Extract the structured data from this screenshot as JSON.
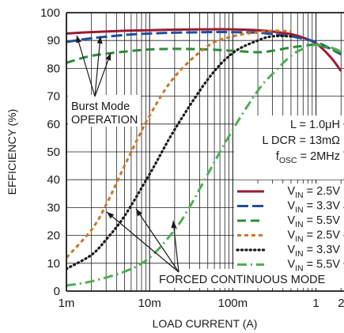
{
  "chart_data": {
    "type": "line",
    "title": "",
    "xlabel": "LOAD CURRENT (A)",
    "ylabel": "EFFICIENCY (%)",
    "xscale": "log",
    "xlim": [
      0.001,
      2
    ],
    "ylim": [
      0,
      100
    ],
    "x_ticks": [
      {
        "value": 0.001,
        "label": "1m"
      },
      {
        "value": 0.01,
        "label": "10m"
      },
      {
        "value": 0.1,
        "label": "100m"
      },
      {
        "value": 1,
        "label": "1"
      },
      {
        "value": 2,
        "label": "2"
      }
    ],
    "y_ticks": [
      0,
      10,
      20,
      30,
      40,
      50,
      60,
      70,
      80,
      90,
      100
    ],
    "grid": true,
    "legend_position": "lower-right",
    "conditions": {
      "inductor": "L = 1.0μH",
      "dcr": "L DCR = 13mΩ",
      "fosc_label": "f",
      "fosc_sub": "OSC",
      "fosc_value": " = 2MHz"
    },
    "annotations": {
      "burst_line1": "Burst Mode",
      "burst_line2": "OPERATION",
      "forced": "FORCED CONTINUOUS MODE"
    },
    "series": [
      {
        "key": "bm25",
        "label_main": "V",
        "label_sub": "IN",
        "label_value": " = 2.5V",
        "color": "#9b1b30",
        "dash": "solid",
        "x": [
          0.001,
          0.002,
          0.005,
          0.01,
          0.02,
          0.05,
          0.1,
          0.2,
          0.3,
          0.5,
          0.7,
          1,
          1.5,
          2
        ],
        "y": [
          92.5,
          93.0,
          93.5,
          93.7,
          93.9,
          94.0,
          94.0,
          93.7,
          93.2,
          92.3,
          91.0,
          89.0,
          84.0,
          79.0
        ]
      },
      {
        "key": "bm33",
        "label_main": "V",
        "label_sub": "IN",
        "label_value": " = 3.3V",
        "color": "#1f4e9e",
        "dash": "long",
        "x": [
          0.001,
          0.002,
          0.005,
          0.01,
          0.02,
          0.05,
          0.1,
          0.2,
          0.3,
          0.5,
          0.7,
          1,
          1.5,
          2
        ],
        "y": [
          89.5,
          90.8,
          92.0,
          92.5,
          92.8,
          93.0,
          93.0,
          92.8,
          92.3,
          91.5,
          90.6,
          89.5,
          87.0,
          85.0
        ]
      },
      {
        "key": "bm55",
        "label_main": "V",
        "label_sub": "IN",
        "label_value": " = 5.5V",
        "color": "#2e8b3a",
        "dash": "medium",
        "x": [
          0.001,
          0.002,
          0.005,
          0.01,
          0.02,
          0.05,
          0.1,
          0.2,
          0.3,
          0.5,
          0.7,
          1,
          1.5,
          2
        ],
        "y": [
          82.0,
          84.5,
          86.0,
          86.8,
          87.0,
          86.8,
          86.3,
          85.8,
          86.3,
          87.5,
          88.0,
          88.5,
          87.0,
          85.5
        ]
      },
      {
        "key": "fc25",
        "label_main": "V",
        "label_sub": "IN",
        "label_value": " = 2.5V",
        "color": "#c8782a",
        "dash": "short",
        "x": [
          0.001,
          0.002,
          0.003,
          0.005,
          0.01,
          0.02,
          0.05,
          0.1,
          0.2,
          0.3,
          0.5
        ],
        "y": [
          12.0,
          22.0,
          31.0,
          45.0,
          63.0,
          77.0,
          88.0,
          91.5,
          93.0,
          93.5,
          93.3
        ]
      },
      {
        "key": "fc33",
        "label_main": "V",
        "label_sub": "IN",
        "label_value": " = 3.3V",
        "color": "#1a1a1a",
        "dash": "dotted",
        "x": [
          0.001,
          0.002,
          0.003,
          0.005,
          0.01,
          0.02,
          0.05,
          0.1,
          0.2,
          0.3,
          0.5
        ],
        "y": [
          8.0,
          13.0,
          18.5,
          27.0,
          42.0,
          58.0,
          76.0,
          85.5,
          90.0,
          91.5,
          91.5
        ]
      },
      {
        "key": "fc55",
        "label_main": "V",
        "label_sub": "IN",
        "label_value": " = 5.5V",
        "color": "#4caf50",
        "dash": "dashdot",
        "x": [
          0.001,
          0.002,
          0.005,
          0.01,
          0.02,
          0.03,
          0.05,
          0.1,
          0.2,
          0.3,
          0.5,
          0.7,
          1,
          1.5,
          2
        ],
        "y": [
          2.0,
          3.5,
          7.0,
          12.0,
          22.0,
          30.0,
          42.0,
          58.0,
          72.0,
          78.0,
          84.5,
          87.0,
          88.5,
          87.5,
          86.0
        ]
      }
    ]
  }
}
